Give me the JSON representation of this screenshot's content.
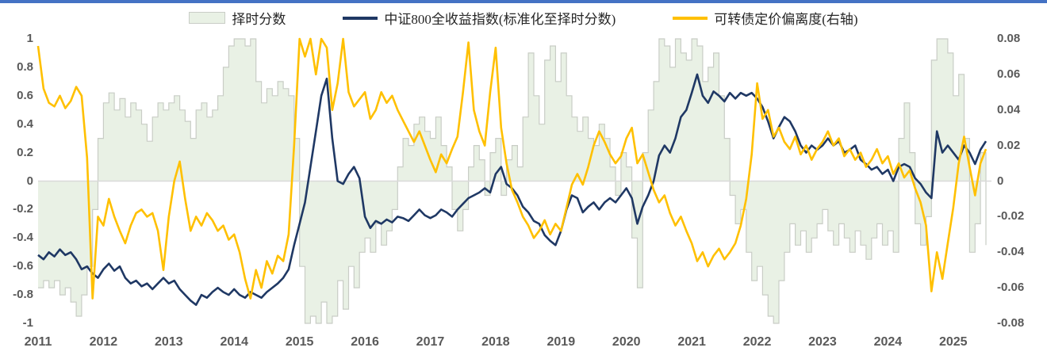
{
  "page": {
    "top_border_color": "#4472c4",
    "background": "#ffffff"
  },
  "legend": [
    {
      "label": "择时分数",
      "type": "area",
      "color": "#e9f1e5",
      "border": "#c9cdc6"
    },
    {
      "label": "中证800全收益指数(标准化至择时分数)",
      "type": "line",
      "color": "#1f3864"
    },
    {
      "label": "可转债定价偏离度(右轴)",
      "type": "line",
      "color": "#ffc000"
    }
  ],
  "axes": {
    "left_ticks": [
      "1",
      "0.8",
      "0.6",
      "0.4",
      "0.2",
      "0",
      "-0.2",
      "-0.4",
      "-0.6",
      "-0.8",
      "-1"
    ],
    "right_ticks": [
      "0.08",
      "0.06",
      "0.04",
      "0.02",
      "0",
      "-0.02",
      "-0.04",
      "-0.06",
      "-0.08"
    ],
    "x_ticks": [
      "2011",
      "2012",
      "2013",
      "2014",
      "2015",
      "2016",
      "2017",
      "2018",
      "2019",
      "2020",
      "2021",
      "2022",
      "2023",
      "2024",
      "2025"
    ]
  },
  "chart_data": {
    "type": "line",
    "title": "",
    "x_start": 2011.0,
    "x_step_months": 1,
    "x_end": 2025.5,
    "left_ylim": [
      -1,
      1
    ],
    "right_ylim": [
      -0.08,
      0.08
    ],
    "grid": "zero-line-only",
    "zero_line_color": "#d9d9d9",
    "legend_position": "top-center",
    "series": [
      {
        "name": "择时分数",
        "axis": "left",
        "style": "step-area",
        "fill": "#e9f1e5",
        "stroke": "#c9cdc6",
        "values": [
          -0.75,
          -0.7,
          -0.75,
          -0.7,
          -0.8,
          -0.75,
          -0.85,
          -0.95,
          -0.8,
          -0.6,
          -0.2,
          0.3,
          0.55,
          0.62,
          0.5,
          0.58,
          0.45,
          0.55,
          0.5,
          0.4,
          0.28,
          0.45,
          0.55,
          0.5,
          0.55,
          0.6,
          0.5,
          0.42,
          0.3,
          0.5,
          0.55,
          0.45,
          0.5,
          0.6,
          0.8,
          0.95,
          1,
          1,
          0.95,
          1,
          0.7,
          0.55,
          0.65,
          0.6,
          0.7,
          0.65,
          0.6,
          0.3,
          -0.6,
          -1,
          -0.95,
          -1,
          -0.85,
          -1,
          -0.95,
          -0.7,
          -0.9,
          -0.6,
          -0.75,
          -0.5,
          -0.4,
          -0.5,
          -0.3,
          -0.45,
          -0.35,
          -0.2,
          0.1,
          0.3,
          0.25,
          0.4,
          0.45,
          0.35,
          0.3,
          0.45,
          0.25,
          0.1,
          -0.2,
          -0.35,
          -0.2,
          0.1,
          0.25,
          0.15,
          -0.1,
          0.2,
          0.3,
          -0.1,
          0.15,
          0.25,
          0.1,
          0.45,
          0.9,
          0.6,
          0.4,
          0.85,
          0.95,
          0.7,
          0.9,
          0.6,
          0.45,
          0.35,
          0.45,
          0.3,
          0.25,
          0.4,
          0.3,
          0.1,
          -0.1,
          0.2,
          0.1,
          -0.4,
          -0.75,
          0.2,
          0.5,
          0.7,
          1,
          0.95,
          0.8,
          1,
          0.9,
          0.85,
          1,
          0.95,
          0.7,
          0.8,
          0.9,
          0.6,
          0.3,
          -0.1,
          -0.3,
          -0.2,
          -0.5,
          -0.7,
          -0.6,
          -0.8,
          -0.95,
          -1,
          -0.7,
          -0.5,
          -0.3,
          -0.45,
          -0.35,
          -0.5,
          -0.4,
          -0.3,
          -0.2,
          -0.35,
          -0.45,
          -0.3,
          -0.4,
          -0.5,
          -0.35,
          -0.45,
          -0.55,
          -0.4,
          -0.3,
          -0.45,
          -0.35,
          -0.5,
          0.3,
          0.55,
          0.2,
          -0.3,
          -0.45,
          -0.25,
          0.85,
          1,
          1,
          0.9,
          0.6,
          0.75,
          0.3,
          -0.5,
          -0.3,
          0.2,
          -0.45
        ]
      },
      {
        "name": "中证800全收益指数(标准化至择时分数)",
        "axis": "left",
        "style": "line",
        "color": "#1f3864",
        "width": 2.6,
        "values": [
          -0.52,
          -0.55,
          -0.5,
          -0.53,
          -0.48,
          -0.52,
          -0.5,
          -0.55,
          -0.62,
          -0.6,
          -0.65,
          -0.68,
          -0.62,
          -0.58,
          -0.63,
          -0.6,
          -0.68,
          -0.72,
          -0.7,
          -0.74,
          -0.72,
          -0.76,
          -0.72,
          -0.68,
          -0.72,
          -0.7,
          -0.76,
          -0.8,
          -0.84,
          -0.87,
          -0.8,
          -0.82,
          -0.78,
          -0.75,
          -0.78,
          -0.8,
          -0.76,
          -0.8,
          -0.82,
          -0.78,
          -0.8,
          -0.82,
          -0.78,
          -0.75,
          -0.72,
          -0.68,
          -0.62,
          -0.45,
          -0.3,
          -0.15,
          0.1,
          0.35,
          0.6,
          0.72,
          0.3,
          0,
          -0.02,
          0.05,
          0.1,
          0.02,
          -0.25,
          -0.33,
          -0.28,
          -0.3,
          -0.27,
          -0.29,
          -0.25,
          -0.26,
          -0.28,
          -0.24,
          -0.2,
          -0.24,
          -0.26,
          -0.24,
          -0.2,
          -0.22,
          -0.25,
          -0.2,
          -0.16,
          -0.12,
          -0.1,
          -0.08,
          -0.05,
          -0.08,
          0.05,
          0.1,
          -0.02,
          -0.05,
          -0.1,
          -0.18,
          -0.22,
          -0.28,
          -0.3,
          -0.38,
          -0.42,
          -0.45,
          -0.35,
          -0.2,
          -0.1,
          -0.12,
          -0.22,
          -0.18,
          -0.15,
          -0.2,
          -0.15,
          -0.12,
          -0.15,
          -0.1,
          -0.05,
          -0.12,
          -0.3,
          -0.18,
          -0.1,
          0,
          0.18,
          0.25,
          0.2,
          0.3,
          0.45,
          0.5,
          0.62,
          0.75,
          0.6,
          0.55,
          0.63,
          0.6,
          0.56,
          0.62,
          0.58,
          0.62,
          0.6,
          0.62,
          0.58,
          0.52,
          0.42,
          0.3,
          0.38,
          0.45,
          0.42,
          0.35,
          0.25,
          0.2,
          0.25,
          0.22,
          0.25,
          0.3,
          0.25,
          0.28,
          0.2,
          0.22,
          0.25,
          0.15,
          0.12,
          0.08,
          0.1,
          0.05,
          0.08,
          0,
          0.1,
          0.12,
          0.1,
          0.02,
          -0.02,
          -0.08,
          -0.12,
          0.35,
          0.2,
          0.25,
          0.2,
          0.15,
          0.25,
          0.2,
          0.12,
          0.22,
          0.28
        ]
      },
      {
        "name": "可转债定价偏离度(右轴)",
        "axis": "right",
        "style": "line",
        "color": "#ffc000",
        "width": 2.6,
        "values": [
          0.076,
          0.052,
          0.044,
          0.042,
          0.048,
          0.041,
          0.045,
          0.053,
          0.048,
          0.013,
          -0.066,
          -0.02,
          -0.025,
          -0.01,
          -0.02,
          -0.028,
          -0.035,
          -0.025,
          -0.018,
          -0.016,
          -0.02,
          -0.018,
          -0.028,
          -0.05,
          -0.02,
          0,
          0.011,
          -0.01,
          -0.028,
          -0.02,
          -0.025,
          -0.018,
          -0.022,
          -0.028,
          -0.025,
          -0.033,
          -0.03,
          -0.04,
          -0.055,
          -0.066,
          -0.05,
          -0.06,
          -0.045,
          -0.052,
          -0.042,
          -0.045,
          -0.03,
          0.02,
          0.082,
          0.07,
          0.085,
          0.06,
          0.088,
          0.075,
          0.04,
          0.055,
          0.082,
          0.05,
          0.042,
          0.046,
          0.05,
          0.035,
          0.04,
          0.05,
          0.044,
          0.048,
          0.04,
          0.034,
          0.028,
          0.022,
          0.028,
          0.02,
          0.012,
          0.005,
          0.015,
          0.01,
          0.018,
          0.025,
          0.05,
          0.078,
          0.04,
          0.028,
          0.02,
          0.05,
          0.075,
          0.03,
          0.01,
          -0.005,
          -0.012,
          -0.02,
          -0.025,
          -0.032,
          -0.028,
          -0.022,
          -0.03,
          -0.024,
          -0.028,
          -0.015,
          -0.002,
          0.004,
          -0.002,
          0.008,
          0.02,
          0.028,
          0.022,
          0.015,
          0.01,
          0.014,
          0.024,
          0.03,
          0.01,
          0.015,
          0.005,
          -0.005,
          -0.012,
          -0.008,
          -0.018,
          -0.025,
          -0.02,
          -0.028,
          -0.035,
          -0.045,
          -0.04,
          -0.048,
          -0.042,
          -0.038,
          -0.044,
          -0.04,
          -0.035,
          -0.025,
          -0.01,
          0.015,
          0.055,
          0.035,
          0.04,
          0.025,
          0.03,
          0.022,
          0.018,
          0.025,
          0.015,
          0.02,
          0.012,
          0.018,
          0.022,
          0.028,
          0.02,
          0.024,
          0.014,
          0.018,
          0.012,
          0.016,
          0.008,
          0.012,
          0.018,
          0.01,
          0.014,
          0.004,
          0.01,
          0.002,
          0.006,
          -0.004,
          -0.012,
          -0.025,
          -0.062,
          -0.04,
          -0.055,
          -0.035,
          -0.015,
          0.01,
          0.025,
          0.008,
          -0.008,
          0.01,
          0.018
        ]
      }
    ]
  }
}
